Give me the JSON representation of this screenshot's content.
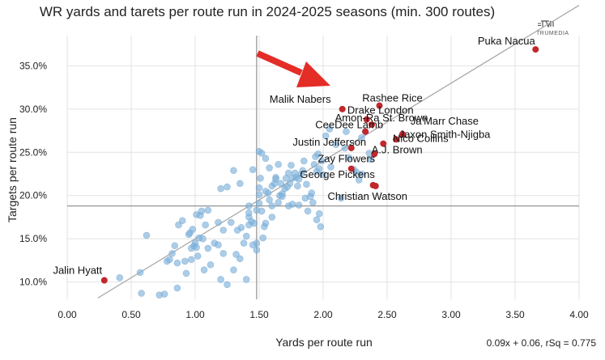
{
  "chart_data": {
    "type": "scatter",
    "title": "WR yards and tarets per route run in 2024-2025 seasons (min. 300 routes)",
    "xlabel": "Yards per route run",
    "ylabel": "Targets per route run",
    "xlim": [
      0.0,
      4.0
    ],
    "ylim": [
      8.0,
      38.5
    ],
    "x_ticks": [
      0.0,
      0.5,
      1.0,
      1.5,
      2.0,
      2.5,
      3.0,
      3.5,
      4.0
    ],
    "x_tick_labels": [
      "0.00",
      "0.50",
      "1.00",
      "1.50",
      "2.00",
      "2.50",
      "3.00",
      "3.50",
      "4.00"
    ],
    "y_ticks": [
      10,
      15,
      20,
      25,
      30,
      35
    ],
    "y_tick_labels": [
      "10.0%",
      "15.0%",
      "20.0%",
      "25.0%",
      "30.0%",
      "35.0%"
    ],
    "grid": true,
    "reference_lines": {
      "x": 1.48,
      "y": 18.8
    },
    "regression": {
      "slope": 0.09,
      "intercept": 0.06,
      "equation_label": "0.09x + 0.06, rSq = 0.775"
    },
    "brand_label": "TRUMEDIA",
    "colors": {
      "default": "#7fb2dc",
      "highlight": "#c0282c",
      "trend": "#aaaaaa",
      "grid": "#e2e2e2",
      "ref": "#999999",
      "arrow": "#e32d26"
    },
    "highlighted": [
      {
        "name": "Puka Nacua",
        "x": 3.66,
        "y": 36.9
      },
      {
        "name": "Rashee Rice",
        "x": 2.44,
        "y": 30.4
      },
      {
        "name": "Malik Nabers",
        "x": 2.15,
        "y": 30.0
      },
      {
        "name": "Drake London",
        "x": 2.34,
        "y": 28.8
      },
      {
        "name": "Amon-Ra St. Brown",
        "x": 2.38,
        "y": 28.2
      },
      {
        "name": "CeeDee Lamb",
        "x": 2.33,
        "y": 27.4
      },
      {
        "name": "Ja'Marr Chase",
        "x": 2.62,
        "y": 27.1
      },
      {
        "name": "Jaxon Smith-Njigba",
        "x": 2.57,
        "y": 26.5
      },
      {
        "name": "Nico Collins",
        "x": 2.47,
        "y": 26.0
      },
      {
        "name": "Justin Jefferson",
        "x": 2.22,
        "y": 25.5
      },
      {
        "name": "A.J. Brown",
        "x": 2.4,
        "y": 24.8
      },
      {
        "name": "Zay Flowers",
        "x": 2.22,
        "y": 23.1
      },
      {
        "name": "George Pickens",
        "x": 2.39,
        "y": 21.2
      },
      {
        "name": "Christian Watson",
        "x": 2.41,
        "y": 21.1
      },
      {
        "name": "Jalin Hyatt",
        "x": 0.29,
        "y": 10.2
      }
    ],
    "points": [
      [
        0.41,
        10.5
      ],
      [
        0.57,
        11.1
      ],
      [
        0.58,
        8.7
      ],
      [
        0.62,
        15.4
      ],
      [
        0.72,
        8.5
      ],
      [
        0.76,
        8.6
      ],
      [
        0.78,
        12.4
      ],
      [
        0.8,
        12.6
      ],
      [
        0.82,
        13.3
      ],
      [
        0.84,
        14.2
      ],
      [
        0.86,
        9.3
      ],
      [
        0.86,
        12.2
      ],
      [
        0.87,
        16.6
      ],
      [
        0.9,
        17.1
      ],
      [
        0.92,
        12.4
      ],
      [
        0.93,
        11.0
      ],
      [
        0.95,
        15.5
      ],
      [
        0.96,
        15.7
      ],
      [
        0.97,
        13.9
      ],
      [
        0.98,
        16.1
      ],
      [
        0.99,
        14.2
      ],
      [
        1.0,
        14.5
      ],
      [
        1.01,
        14.0
      ],
      [
        1.01,
        17.8
      ],
      [
        1.02,
        13.0
      ],
      [
        1.03,
        15.1
      ],
      [
        1.04,
        17.7
      ],
      [
        1.05,
        18.2
      ],
      [
        1.06,
        15.0
      ],
      [
        1.07,
        11.4
      ],
      [
        1.08,
        16.6
      ],
      [
        1.1,
        13.9
      ],
      [
        1.12,
        12.0
      ],
      [
        1.15,
        14.5
      ],
      [
        1.18,
        16.9
      ],
      [
        1.2,
        10.3
      ],
      [
        1.22,
        13.3
      ],
      [
        1.25,
        9.7
      ],
      [
        1.28,
        16.9
      ],
      [
        1.3,
        11.4
      ],
      [
        1.32,
        13.2
      ],
      [
        1.35,
        12.7
      ],
      [
        1.38,
        14.5
      ],
      [
        1.4,
        10.3
      ],
      [
        1.42,
        18.8
      ],
      [
        1.42,
        17.5
      ],
      [
        1.44,
        17.0
      ],
      [
        1.46,
        16.8
      ],
      [
        1.48,
        18.3
      ],
      [
        1.48,
        14.5
      ],
      [
        1.48,
        13.7
      ],
      [
        1.5,
        20.9
      ],
      [
        1.5,
        20.1
      ],
      [
        1.51,
        22.0
      ],
      [
        1.52,
        18.2
      ],
      [
        1.53,
        15.1
      ],
      [
        1.55,
        16.8
      ],
      [
        1.57,
        20.3
      ],
      [
        1.58,
        19.5
      ],
      [
        1.6,
        21.1
      ],
      [
        1.62,
        21.4
      ],
      [
        1.63,
        22.1
      ],
      [
        1.65,
        23.6
      ],
      [
        1.66,
        20.0
      ],
      [
        1.67,
        21.4
      ],
      [
        1.68,
        20.2
      ],
      [
        1.7,
        20.8
      ],
      [
        1.71,
        22.0
      ],
      [
        1.73,
        18.8
      ],
      [
        1.74,
        21.4
      ],
      [
        1.75,
        23.5
      ],
      [
        1.76,
        22.0
      ],
      [
        1.78,
        22.6
      ],
      [
        1.79,
        22.1
      ],
      [
        1.8,
        21.1
      ],
      [
        1.81,
        18.9
      ],
      [
        1.83,
        22.5
      ],
      [
        1.85,
        24.0
      ],
      [
        1.86,
        19.7
      ],
      [
        1.87,
        21.3
      ],
      [
        1.88,
        18.2
      ],
      [
        1.9,
        19.9
      ],
      [
        1.91,
        20.3
      ],
      [
        1.93,
        23.6
      ],
      [
        1.94,
        24.5
      ],
      [
        1.95,
        22.8
      ],
      [
        1.97,
        23.1
      ],
      [
        1.97,
        17.9
      ],
      [
        1.98,
        16.4
      ],
      [
        1.99,
        24.0
      ],
      [
        2.0,
        22.4
      ],
      [
        2.02,
        26.9
      ],
      [
        2.06,
        23.3
      ],
      [
        2.1,
        25.9
      ],
      [
        2.14,
        19.7
      ],
      [
        2.17,
        25.5
      ],
      [
        2.2,
        24.4
      ],
      [
        2.24,
        23.0
      ],
      [
        2.26,
        22.7
      ],
      [
        2.28,
        21.8
      ],
      [
        2.3,
        26.7
      ],
      [
        2.33,
        27.4
      ],
      [
        2.36,
        24.9
      ],
      [
        2.37,
        24.2
      ],
      [
        1.5,
        25.1
      ],
      [
        1.52,
        24.9
      ],
      [
        1.55,
        24.3
      ],
      [
        1.45,
        23.0
      ],
      [
        1.35,
        21.4
      ],
      [
        1.3,
        22.9
      ],
      [
        1.25,
        21.0
      ],
      [
        1.2,
        20.8
      ],
      [
        1.58,
        23.2
      ],
      [
        1.63,
        21.9
      ],
      [
        1.42,
        18.0
      ],
      [
        1.36,
        16.3
      ],
      [
        1.33,
        16.0
      ],
      [
        1.6,
        17.5
      ],
      [
        1.68,
        19.9
      ],
      [
        1.73,
        22.6
      ],
      [
        1.95,
        17.2
      ],
      [
        1.92,
        19.2
      ],
      [
        1.76,
        19.0
      ],
      [
        1.54,
        16.4
      ],
      [
        1.45,
        14.3
      ],
      [
        1.18,
        14.3
      ],
      [
        1.1,
        18.3
      ],
      [
        0.97,
        12.6
      ],
      [
        1.42,
        16.6
      ],
      [
        1.65,
        19.2
      ],
      [
        1.6,
        18.8
      ],
      [
        1.84,
        22.9
      ],
      [
        2.18,
        27.4
      ],
      [
        2.05,
        27.7
      ],
      [
        1.96,
        24.8
      ],
      [
        2.3,
        22.5
      ],
      [
        1.72,
        21.0
      ],
      [
        1.81,
        21.9
      ],
      [
        1.55,
        20.5
      ],
      [
        1.5,
        19.1
      ],
      [
        1.4,
        15.3
      ],
      [
        1.22,
        16.0
      ]
    ]
  },
  "axis_titles": {
    "x": "Yards per route run",
    "y": "Targets per route run"
  },
  "equation_text": "0.09x + 0.06, rSq = 0.775"
}
